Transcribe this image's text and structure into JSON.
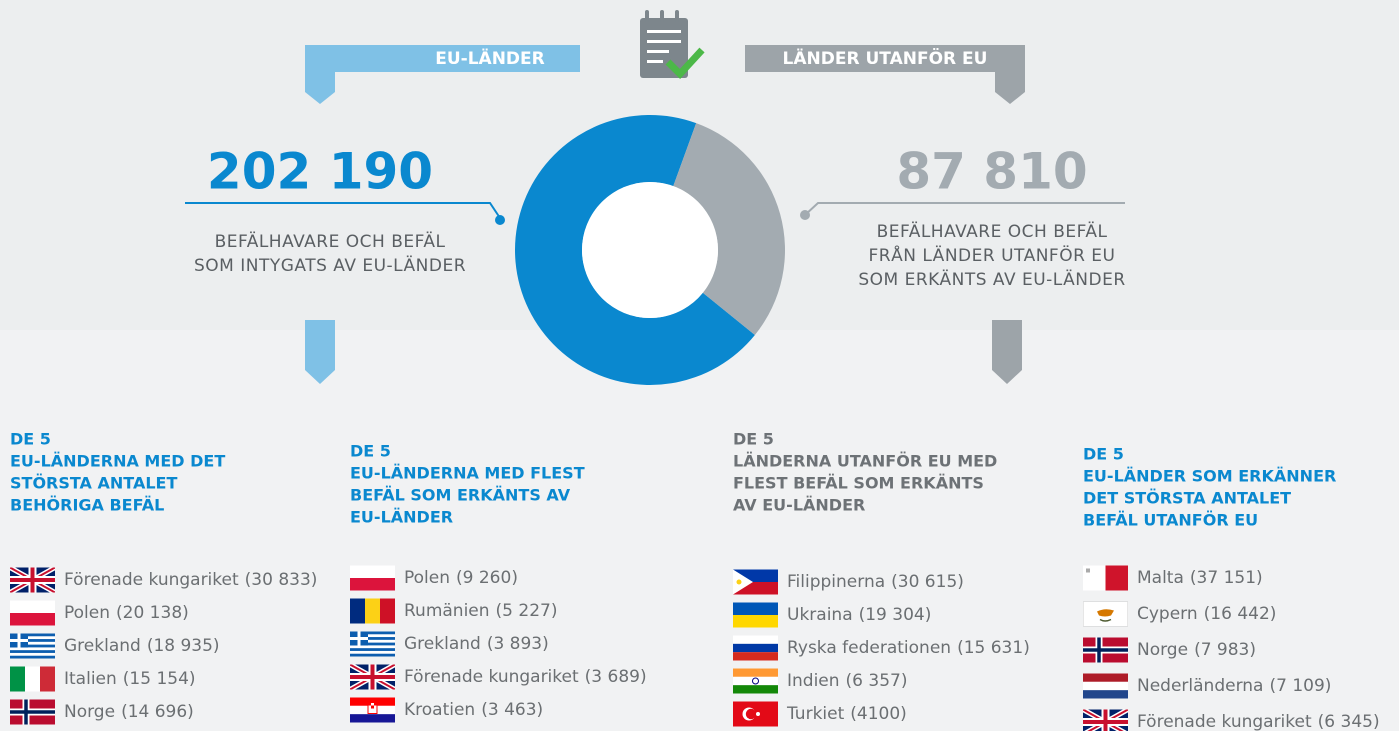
{
  "header": {
    "eu_label": "EU-LÄNDER",
    "non_eu_label": "LÄNDER UTANFÖR EU"
  },
  "chart_data": {
    "type": "pie",
    "donut": true,
    "categories": [
      "EU-LÄNDER",
      "LÄNDER UTANFÖR EU"
    ],
    "values": [
      202190,
      87810
    ],
    "value_labels": [
      "202 190",
      "87 810"
    ],
    "colors": [
      "#0a88cf",
      "#a3abb1"
    ],
    "descriptions": [
      [
        "BEFÄLHAVARE OCH BEFÄL",
        "SOM INTYGATS AV EU-LÄNDER"
      ],
      [
        "BEFÄLHAVARE OCH BEFÄL",
        "FRÅN LÄNDER UTANFÖR EU",
        "SOM ERKÄNTS AV EU-LÄNDER"
      ]
    ]
  },
  "lists": [
    {
      "heading": [
        "DE 5",
        "EU-LÄNDERNA MED DET",
        "STÖRSTA ANTALET",
        "BEHÖRIGA BEFÄL"
      ],
      "items": [
        {
          "country": "Förenade kungariket",
          "count": "(30 833)"
        },
        {
          "country": "Polen",
          "count": "(20 138)"
        },
        {
          "country": "Grekland",
          "count": "(18 935)"
        },
        {
          "country": "Italien",
          "count": "(15 154)"
        },
        {
          "country": "Norge",
          "count": "(14 696)"
        }
      ]
    },
    {
      "heading": [
        "DE 5",
        "EU-LÄNDERNA MED FLEST",
        "BEFÄL SOM ERKÄNTS AV",
        "EU-LÄNDER"
      ],
      "items": [
        {
          "country": "Polen",
          "count": "(9 260)"
        },
        {
          "country": "Rumänien",
          "count": "(5 227)"
        },
        {
          "country": "Grekland",
          "count": "(3 893)"
        },
        {
          "country": "Förenade kungariket",
          "count": "(3 689)"
        },
        {
          "country": "Kroatien",
          "count": "(3 463)"
        }
      ]
    },
    {
      "heading": [
        "DE 5",
        "LÄNDERNA UTANFÖR EU MED",
        "FLEST BEFÄL SOM ERKÄNTS",
        "AV EU-LÄNDER"
      ],
      "items": [
        {
          "country": "Filippinerna",
          "count": "(30 615)"
        },
        {
          "country": "Ukraina",
          "count": "(19 304)"
        },
        {
          "country": "Ryska federationen",
          "count": "(15 631)"
        },
        {
          "country": "Indien",
          "count": "(6 357)"
        },
        {
          "country": "Turkiet",
          "count": "(4100)"
        }
      ]
    },
    {
      "heading": [
        "DE 5",
        "EU-LÄNDER SOM ERKÄNNER",
        "DET STÖRSTA ANTALET",
        "BEFÄL UTANFÖR EU"
      ],
      "items": [
        {
          "country": "Malta",
          "count": "(37 151)"
        },
        {
          "country": "Cypern",
          "count": "(16 442)"
        },
        {
          "country": "Norge",
          "count": "(7 983)"
        },
        {
          "country": "Nederländerna",
          "count": "(7 109)"
        },
        {
          "country": "Förenade kungariket",
          "count": "(6 345)"
        }
      ]
    }
  ]
}
